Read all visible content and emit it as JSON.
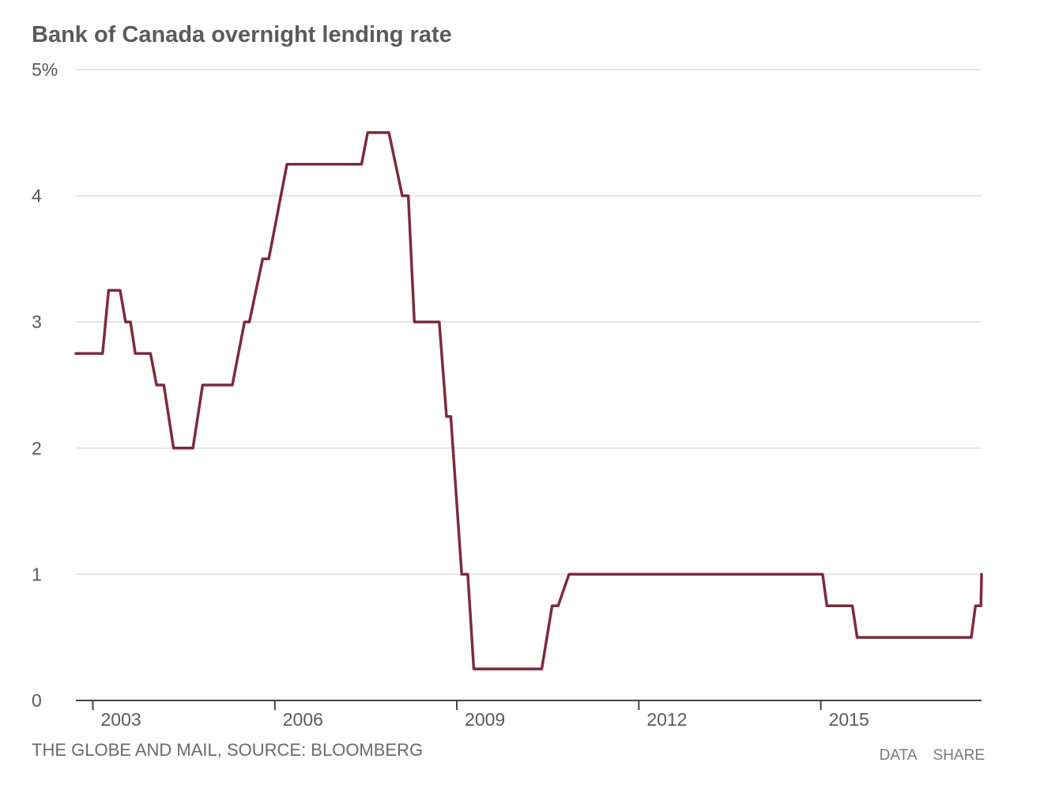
{
  "chart_data": {
    "type": "line",
    "title": "Bank of Canada overnight lending rate",
    "xlabel": "",
    "ylabel": "",
    "y_ticks": [
      {
        "value": 0,
        "label": "0"
      },
      {
        "value": 1,
        "label": "1"
      },
      {
        "value": 2,
        "label": "2"
      },
      {
        "value": 3,
        "label": "3"
      },
      {
        "value": 4,
        "label": "4"
      },
      {
        "value": 5,
        "label": "5%"
      }
    ],
    "x_ticks": [
      {
        "value": 2003,
        "label": "2003"
      },
      {
        "value": 2006,
        "label": "2006"
      },
      {
        "value": 2009,
        "label": "2009"
      },
      {
        "value": 2012,
        "label": "2012"
      },
      {
        "value": 2015,
        "label": "2015"
      }
    ],
    "xlim": [
      2002.72,
      2017.65
    ],
    "ylim": [
      0,
      5
    ],
    "grid": true,
    "color": "#7d2b3e",
    "series": [
      {
        "x": [
          2002.72,
          2003.16,
          2003.26,
          2003.45,
          2003.54,
          2003.62,
          2003.7,
          2003.95,
          2004.05,
          2004.17,
          2004.33,
          2004.65,
          2004.81,
          2005.3,
          2005.5,
          2005.58,
          2005.8,
          2005.9,
          2006.2,
          2006.37,
          2007.43,
          2007.53,
          2007.88,
          2008.1,
          2008.2,
          2008.3,
          2008.71,
          2008.83,
          2008.9,
          2009.08,
          2009.18,
          2009.28,
          2010.4,
          2010.57,
          2010.67,
          2010.85,
          2015.03,
          2015.1,
          2015.52,
          2015.6,
          2017.48,
          2017.55,
          2017.64,
          2017.65
        ],
        "y": [
          2.75,
          2.75,
          3.25,
          3.25,
          3.0,
          3.0,
          2.75,
          2.75,
          2.5,
          2.5,
          2.0,
          2.0,
          2.5,
          2.5,
          3.0,
          3.0,
          3.5,
          3.5,
          4.25,
          4.25,
          4.25,
          4.5,
          4.5,
          4.0,
          4.0,
          3.0,
          3.0,
          2.25,
          2.25,
          1.0,
          1.0,
          0.25,
          0.25,
          0.75,
          0.75,
          1.0,
          1.0,
          0.75,
          0.75,
          0.5,
          0.5,
          0.75,
          0.75,
          1.0
        ]
      }
    ]
  },
  "footer": {
    "source": "THE GLOBE AND MAIL, SOURCE: BLOOMBERG",
    "data_label": "DATA",
    "share_label": "SHARE"
  }
}
